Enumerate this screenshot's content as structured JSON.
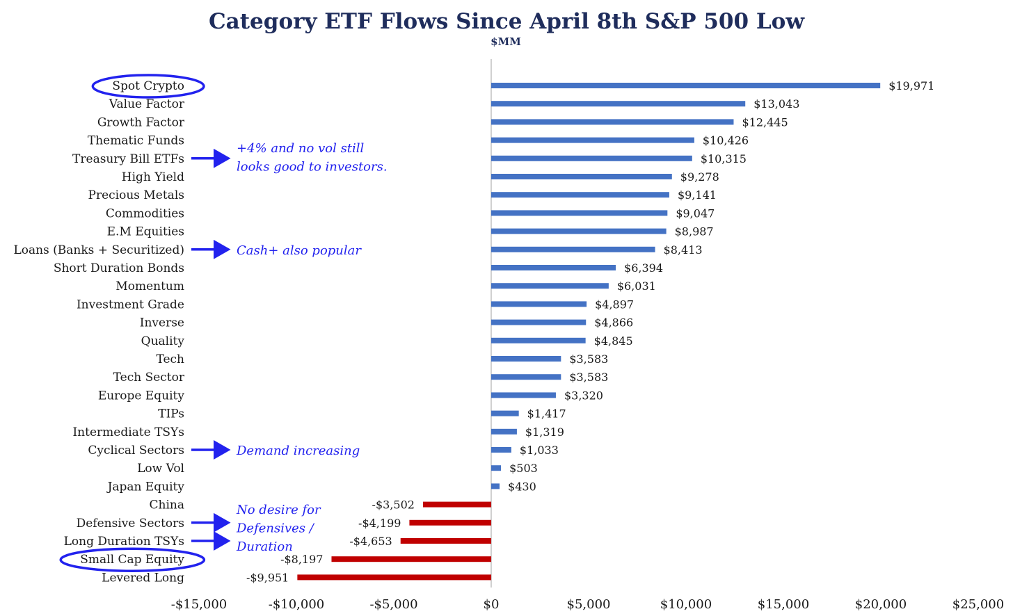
{
  "colors": {
    "positive": "#4472c4",
    "negative": "#c00000",
    "annotation": "#2222ee",
    "title": "#1f2d5c",
    "axis": "#d0d0d0"
  },
  "chart_data": {
    "type": "bar",
    "orientation": "horizontal",
    "title": "Category ETF Flows Since April 8th S&P 500 Low",
    "subtitle": "$MM",
    "categories": [
      "Spot Crypto",
      "Value Factor",
      "Growth Factor",
      "Thematic Funds",
      "Treasury Bill ETFs",
      "High Yield",
      "Precious Metals",
      "Commodities",
      "E.M Equities",
      "Loans (Banks + Securitized)",
      "Short Duration Bonds",
      "Momentum",
      "Investment Grade",
      "Inverse",
      "Quality",
      "Tech",
      "Tech Sector",
      "Europe Equity",
      "TIPs",
      "Intermediate TSYs",
      "Cyclical Sectors",
      "Low Vol",
      "Japan Equity",
      "China",
      "Defensive Sectors",
      "Long Duration TSYs",
      "Small Cap Equity",
      "Levered Long"
    ],
    "values": [
      19971,
      13043,
      12445,
      10426,
      10315,
      9278,
      9141,
      9047,
      8987,
      8413,
      6394,
      6031,
      4897,
      4866,
      4845,
      3583,
      3583,
      3320,
      1417,
      1319,
      1033,
      503,
      430,
      -3502,
      -4199,
      -4653,
      -8197,
      -9951
    ],
    "value_labels": [
      "$19,971",
      "$13,043",
      "$12,445",
      "$10,426",
      "$10,315",
      "$9,278",
      "$9,141",
      "$9,047",
      "$8,987",
      "$8,413",
      "$6,394",
      "$6,031",
      "$4,897",
      "$4,866",
      "$4,845",
      "$3,583",
      "$3,583",
      "$3,320",
      "$1,417",
      "$1,319",
      "$1,033",
      "$503",
      "$430",
      "-$3,502",
      "-$4,199",
      "-$4,653",
      "-$8,197",
      "-$9,951"
    ],
    "xlim": [
      -15000,
      25000
    ],
    "xticks": [
      -15000,
      -10000,
      -5000,
      0,
      5000,
      10000,
      15000,
      20000,
      25000
    ],
    "xtick_labels": [
      "-$15,000",
      "-$10,000",
      "-$5,000",
      "$0",
      "$5,000",
      "$10,000",
      "$15,000",
      "$20,000",
      "$25,000"
    ],
    "grid": false,
    "legend": "none"
  },
  "annotations": [
    {
      "lines": [
        "+4% and no vol still",
        "looks good to investors."
      ],
      "arrow_to": "Treasury Bill ETFs"
    },
    {
      "lines": [
        "Cash+ also popular"
      ],
      "arrow_to": "Loans (Banks + Securitized)"
    },
    {
      "lines": [
        "Demand increasing"
      ],
      "arrow_to": "Cyclical Sectors"
    },
    {
      "lines": [
        "No desire for",
        "Defensives /",
        "Duration"
      ],
      "arrow_to": [
        "Defensive Sectors",
        "Long Duration TSYs"
      ]
    }
  ],
  "highlighted_categories": [
    "Spot Crypto",
    "Small Cap Equity"
  ]
}
